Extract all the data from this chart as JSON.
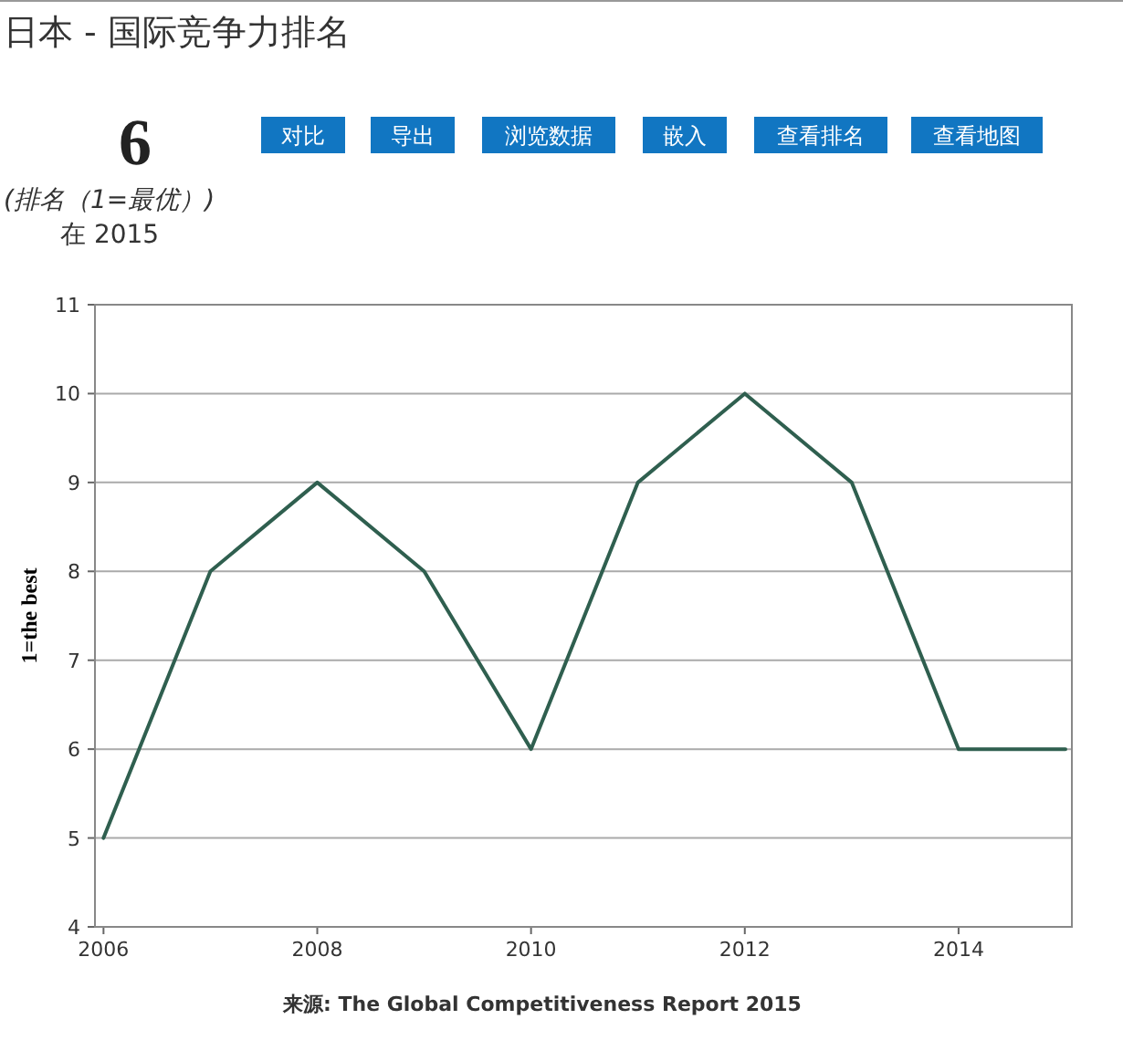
{
  "chart_data": {
    "type": "line",
    "title": "日本 - 国际竞争力排名",
    "subtitle": "(排名（1=最优）)",
    "ylabel": "1=the best",
    "annotations": [
      "6",
      "在 2015",
      "对比",
      "导出",
      "浏览数据",
      "嵌入",
      "查看排名",
      "查看地图",
      "来源: The Global Competitiveness Report 2015"
    ],
    "x": [
      2006,
      2007,
      2008,
      2009,
      2010,
      2011,
      2012,
      2013,
      2014,
      2015
    ],
    "series": [
      {
        "color": "#2f5f4f",
        "values": [
          5,
          8,
          9,
          8,
          6,
          9,
          10,
          9,
          6,
          6
        ]
      }
    ],
    "xlim": [
      2005.92,
      2015.06
    ],
    "xticks": [
      2006,
      2008,
      2010,
      2012,
      2014
    ],
    "ylim": [
      4,
      11
    ],
    "yticks": [
      4,
      5,
      6,
      7,
      8,
      9,
      10,
      11
    ],
    "grid": "y"
  }
}
